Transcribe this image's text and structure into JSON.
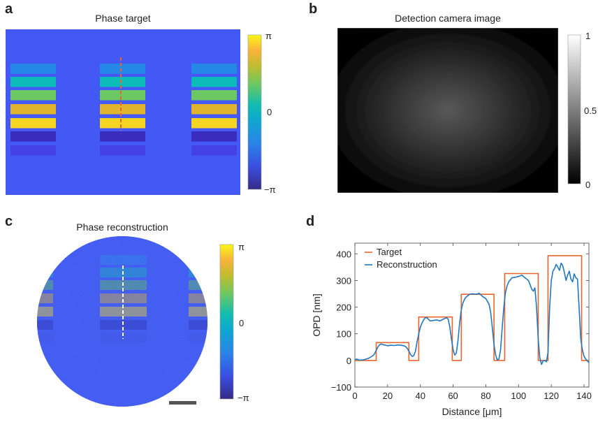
{
  "panels": {
    "a": {
      "label": "a",
      "title": "Phase target",
      "colorbar": {
        "ticks": [
          "π",
          "0",
          "−π"
        ]
      }
    },
    "b": {
      "label": "b",
      "title": "Detection camera image",
      "colorbar": {
        "ticks": [
          "1",
          "0.5",
          "0"
        ]
      }
    },
    "c": {
      "label": "c",
      "title": "Phase reconstruction",
      "colorbar": {
        "ticks": [
          "π",
          "0",
          "−π"
        ]
      }
    },
    "d": {
      "label": "d"
    }
  },
  "colors": {
    "background_phase": "#4458f5",
    "target_line": "#e8642c",
    "reconstruction_line": "#1f77c4",
    "scale_bar": "#555555",
    "bars": [
      "#2688e6",
      "#0abbb8",
      "#6cc862",
      "#e2b42c",
      "#f6d622",
      "#3a2dbe",
      "#4442e6"
    ]
  },
  "chart_data": {
    "type": "line",
    "xlabel": "Distance [μm]",
    "ylabel": "OPD [nm]",
    "xlim": [
      0,
      143
    ],
    "ylim": [
      -100,
      440
    ],
    "xticks": [
      0,
      20,
      40,
      60,
      80,
      100,
      120,
      140
    ],
    "yticks": [
      -100,
      0,
      100,
      200,
      300,
      400
    ],
    "legend": {
      "placement": "top-left"
    },
    "series": [
      {
        "name": "Target",
        "x": [
          0,
          13,
          13,
          33,
          33,
          39,
          39,
          59.5,
          59.5,
          65,
          65,
          85,
          85,
          91.5,
          91.5,
          112,
          112,
          118,
          118,
          138.5,
          138.5,
          143
        ],
        "y": [
          0,
          0,
          67,
          67,
          0,
          0,
          163,
          163,
          0,
          0,
          248,
          248,
          0,
          0,
          326,
          326,
          0,
          0,
          393,
          393,
          0,
          0
        ]
      },
      {
        "name": "Reconstruction",
        "x": [
          0,
          1,
          2,
          3,
          5,
          7,
          9,
          11,
          12,
          13,
          14,
          15,
          16,
          18,
          20,
          22,
          24,
          26,
          28,
          30,
          31,
          32,
          33,
          34,
          35,
          36,
          37,
          38,
          39,
          40,
          41,
          42,
          43,
          44,
          46,
          48,
          50,
          52,
          54,
          56,
          57,
          58,
          59,
          60,
          61,
          62,
          63,
          64,
          65,
          66,
          67,
          68,
          70,
          72,
          74,
          76,
          78,
          80,
          82,
          83,
          84,
          85,
          86,
          87,
          88,
          89,
          90,
          91,
          92,
          93,
          94,
          96,
          98,
          100,
          102,
          104,
          106,
          107,
          108,
          109,
          110,
          111,
          112,
          113,
          114,
          115,
          116,
          117,
          118,
          119,
          120,
          121,
          122,
          123,
          124,
          125,
          126,
          127,
          128,
          129,
          130,
          131,
          132,
          133,
          134,
          135,
          136,
          137,
          138,
          139,
          140,
          141,
          143
        ],
        "y": [
          2,
          5,
          3,
          1,
          2,
          5,
          10,
          18,
          25,
          38,
          50,
          58,
          62,
          58,
          55,
          57,
          56,
          58,
          57,
          55,
          52,
          45,
          35,
          22,
          15,
          18,
          35,
          70,
          100,
          125,
          140,
          152,
          160,
          160,
          148,
          150,
          152,
          148,
          155,
          160,
          155,
          125,
          80,
          40,
          20,
          28,
          75,
          140,
          190,
          215,
          230,
          238,
          248,
          250,
          248,
          252,
          240,
          232,
          210,
          180,
          120,
          60,
          20,
          2,
          5,
          40,
          120,
          200,
          255,
          280,
          295,
          310,
          312,
          315,
          320,
          310,
          300,
          285,
          268,
          260,
          272,
          200,
          80,
          10,
          -15,
          -2,
          0,
          -5,
          30,
          200,
          300,
          335,
          345,
          360,
          350,
          338,
          365,
          355,
          330,
          300,
          320,
          335,
          305,
          295,
          325,
          310,
          305,
          200,
          80,
          40,
          15,
          5,
          -8
        ]
      }
    ]
  }
}
